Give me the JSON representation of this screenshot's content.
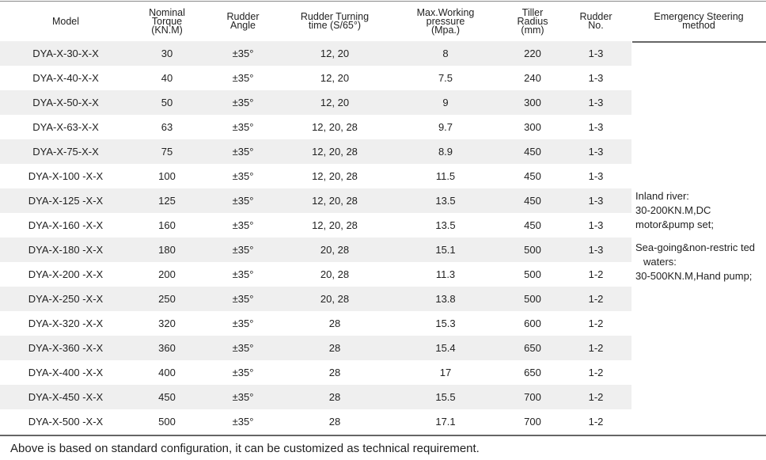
{
  "headers": {
    "model": "Model",
    "torque": "Nominal\nTorque\n(KN.M)",
    "angle": "Rudder\nAngle",
    "turning": "Rudder Turning\ntime  (S/65°)",
    "pressure": "Max.Working\npressure\n(Mpa.)",
    "radius": "Tiller\nRadius\n(mm)",
    "rudder_no": "Rudder\nNo.",
    "emergency": "Emergency Steering\nmethod"
  },
  "rows": [
    {
      "model": "DYA-X-30-X-X",
      "torque": "30",
      "angle": "±35°",
      "turning": "12, 20",
      "pressure": "8",
      "radius": "220",
      "rudder_no": "1-3"
    },
    {
      "model": "DYA-X-40-X-X",
      "torque": "40",
      "angle": "±35°",
      "turning": "12, 20",
      "pressure": "7.5",
      "radius": "240",
      "rudder_no": "1-3"
    },
    {
      "model": "DYA-X-50-X-X",
      "torque": "50",
      "angle": "±35°",
      "turning": "12, 20",
      "pressure": "9",
      "radius": "300",
      "rudder_no": "1-3"
    },
    {
      "model": "DYA-X-63-X-X",
      "torque": "63",
      "angle": "±35°",
      "turning": "12, 20, 28",
      "pressure": "9.7",
      "radius": "300",
      "rudder_no": "1-3"
    },
    {
      "model": "DYA-X-75-X-X",
      "torque": "75",
      "angle": "±35°",
      "turning": "12, 20, 28",
      "pressure": "8.9",
      "radius": "450",
      "rudder_no": "1-3"
    },
    {
      "model": "DYA-X-100 -X-X",
      "torque": "100",
      "angle": "±35°",
      "turning": "12, 20, 28",
      "pressure": "11.5",
      "radius": "450",
      "rudder_no": "1-3"
    },
    {
      "model": "DYA-X-125 -X-X",
      "torque": "125",
      "angle": "±35°",
      "turning": "12, 20, 28",
      "pressure": "13.5",
      "radius": "450",
      "rudder_no": "1-3"
    },
    {
      "model": "DYA-X-160 -X-X",
      "torque": "160",
      "angle": "±35°",
      "turning": "12, 20, 28",
      "pressure": "13.5",
      "radius": "450",
      "rudder_no": "1-3"
    },
    {
      "model": "DYA-X-180 -X-X",
      "torque": "180",
      "angle": "±35°",
      "turning": "20, 28",
      "pressure": "15.1",
      "radius": "500",
      "rudder_no": "1-3"
    },
    {
      "model": "DYA-X-200 -X-X",
      "torque": "200",
      "angle": "±35°",
      "turning": "20, 28",
      "pressure": "11.3",
      "radius": "500",
      "rudder_no": "1-2"
    },
    {
      "model": "DYA-X-250 -X-X",
      "torque": "250",
      "angle": "±35°",
      "turning": "20, 28",
      "pressure": "13.8",
      "radius": "500",
      "rudder_no": "1-2"
    },
    {
      "model": "DYA-X-320 -X-X",
      "torque": "320",
      "angle": "±35°",
      "turning": "28",
      "pressure": "15.3",
      "radius": "600",
      "rudder_no": "1-2"
    },
    {
      "model": "DYA-X-360 -X-X",
      "torque": "360",
      "angle": "±35°",
      "turning": "28",
      "pressure": "15.4",
      "radius": "650",
      "rudder_no": "1-2"
    },
    {
      "model": "DYA-X-400 -X-X",
      "torque": "400",
      "angle": "±35°",
      "turning": "28",
      "pressure": "17",
      "radius": "650",
      "rudder_no": "1-2"
    },
    {
      "model": "DYA-X-450 -X-X",
      "torque": "450",
      "angle": "±35°",
      "turning": "28",
      "pressure": "15.5",
      "radius": "700",
      "rudder_no": "1-2"
    },
    {
      "model": "DYA-X-500 -X-X",
      "torque": "500",
      "angle": "±35°",
      "turning": "28",
      "pressure": "17.1",
      "radius": "700",
      "rudder_no": "1-2"
    }
  ],
  "emergency": {
    "inland_title": "Inland river:",
    "inland_spec": "30-200KN.M,DC",
    "inland_method": "motor&pump set;",
    "sea_title": "Sea-going&non-restric ted",
    "sea_title2": "waters:",
    "sea_spec": "30-500KN.M,Hand pump;"
  },
  "note": "Above is based on standard configuration, it can be customized as technical requirement."
}
